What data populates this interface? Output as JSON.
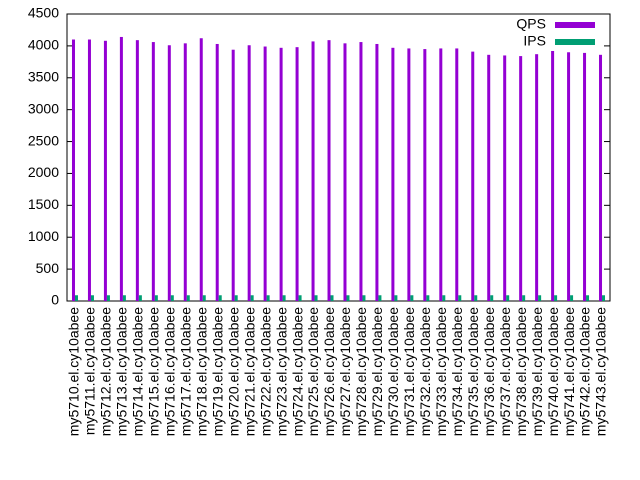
{
  "chart_data": {
    "type": "bar",
    "categories": [
      "my5710.el.cy10abee",
      "my5711.el.cy10abee",
      "my5712.el.cy10abee",
      "my5713.el.cy10abee",
      "my5714.el.cy10abee",
      "my5715.el.cy10abee",
      "my5716.el.cy10abee",
      "my5717.el.cy10abee",
      "my5718.el.cy10abee",
      "my5719.el.cy10abee",
      "my5720.el.cy10abee",
      "my5721.el.cy10abee",
      "my5722.el.cy10abee",
      "my5723.el.cy10abee",
      "my5724.el.cy10abee",
      "my5725.el.cy10abee",
      "my5726.el.cy10abee",
      "my5727.el.cy10abee",
      "my5728.el.cy10abee",
      "my5729.el.cy10abee",
      "my5730.el.cy10abee",
      "my5731.el.cy10abee",
      "my5732.el.cy10abee",
      "my5733.el.cy10abee",
      "my5734.el.cy10abee",
      "my5735.el.cy10abee",
      "my5736.el.cy10abee",
      "my5737.el.cy10abee",
      "my5738.el.cy10abee",
      "my5739.el.cy10abee",
      "my5740.el.cy10abee",
      "my5741.el.cy10abee",
      "my5742.el.cy10abee",
      "my5743.el.cy10abee"
    ],
    "series": [
      {
        "name": "QPS",
        "color": "#9400d3",
        "values": [
          4100,
          4100,
          4080,
          4140,
          4090,
          4060,
          4010,
          4040,
          4120,
          4030,
          3940,
          4010,
          3990,
          3970,
          3980,
          4070,
          4090,
          4040,
          4060,
          4030,
          3970,
          3960,
          3950,
          3960,
          3960,
          3910,
          3860,
          3850,
          3840,
          3870,
          3920,
          3900,
          3890,
          3860
        ]
      },
      {
        "name": "IPS",
        "color": "#009e73",
        "values": [
          90,
          90,
          90,
          90,
          90,
          90,
          90,
          90,
          90,
          90,
          90,
          90,
          90,
          90,
          90,
          90,
          90,
          90,
          90,
          90,
          90,
          90,
          90,
          90,
          90,
          90,
          90,
          90,
          90,
          90,
          90,
          90,
          90,
          90
        ]
      }
    ],
    "ylim": [
      0,
      4500
    ],
    "yticks": [
      0,
      500,
      1000,
      1500,
      2000,
      2500,
      3000,
      3500,
      4000,
      4500
    ],
    "legend": "top-right"
  }
}
